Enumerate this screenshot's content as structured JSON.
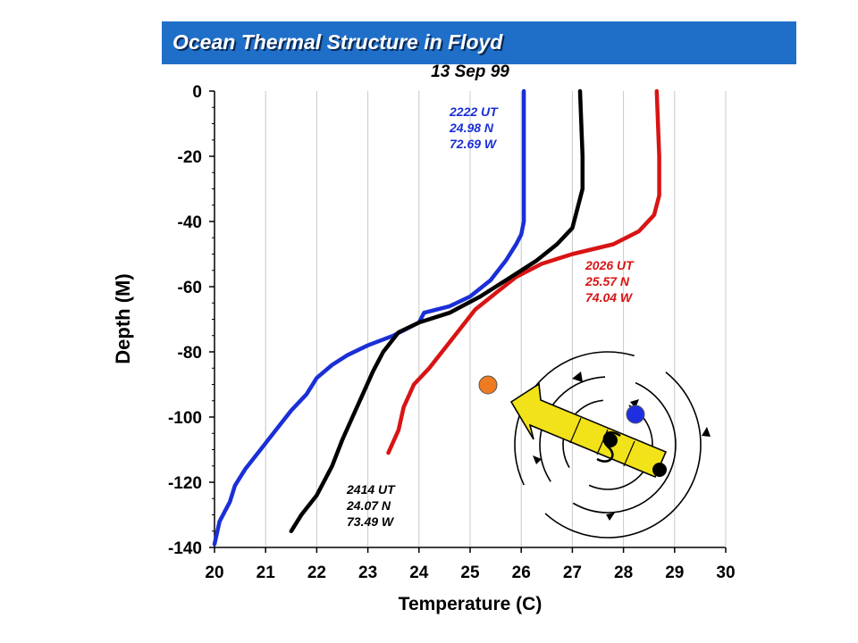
{
  "header": {
    "title": "Ocean Thermal Structure in Floyd"
  },
  "chart_data": {
    "type": "line",
    "subtitle": "13 Sep 99",
    "xlabel": "Temperature (C)",
    "ylabel": "Depth (M)",
    "xlim": [
      20,
      30
    ],
    "ylim": [
      -140,
      0
    ],
    "xticks": [
      "20",
      "21",
      "22",
      "23",
      "24",
      "25",
      "26",
      "27",
      "28",
      "29",
      "30"
    ],
    "yticks": [
      "0",
      "-20",
      "-40",
      "-60",
      "-80",
      "-100",
      "-120",
      "-140"
    ],
    "grid": true,
    "series": [
      {
        "name": "2222 UT",
        "color": "#1a2fd6",
        "annotation": [
          "2222 UT",
          "24.98 N",
          "72.69 W"
        ],
        "points": [
          [
            26.05,
            0
          ],
          [
            26.05,
            -20
          ],
          [
            26.05,
            -40
          ],
          [
            26.0,
            -44
          ],
          [
            25.9,
            -47
          ],
          [
            25.7,
            -52
          ],
          [
            25.4,
            -58
          ],
          [
            25.0,
            -63
          ],
          [
            24.6,
            -66
          ],
          [
            24.1,
            -68
          ],
          [
            24.0,
            -71
          ],
          [
            23.5,
            -75
          ],
          [
            23.0,
            -78
          ],
          [
            22.6,
            -81
          ],
          [
            22.3,
            -84
          ],
          [
            22.0,
            -88
          ],
          [
            21.8,
            -93
          ],
          [
            21.5,
            -98
          ],
          [
            21.2,
            -104
          ],
          [
            20.9,
            -110
          ],
          [
            20.6,
            -116
          ],
          [
            20.4,
            -121
          ],
          [
            20.3,
            -126
          ],
          [
            20.1,
            -132
          ],
          [
            20.0,
            -139
          ]
        ]
      },
      {
        "name": "2026 UT",
        "color": "#d81414",
        "annotation": [
          "2026 UT",
          "25.57 N",
          "74.04 W"
        ],
        "points": [
          [
            28.65,
            0
          ],
          [
            28.7,
            -20
          ],
          [
            28.7,
            -32
          ],
          [
            28.6,
            -38
          ],
          [
            28.3,
            -43
          ],
          [
            27.8,
            -47
          ],
          [
            27.0,
            -50
          ],
          [
            26.4,
            -53
          ],
          [
            25.9,
            -57
          ],
          [
            25.5,
            -62
          ],
          [
            25.1,
            -67
          ],
          [
            24.8,
            -73
          ],
          [
            24.5,
            -79
          ],
          [
            24.2,
            -85
          ],
          [
            23.9,
            -90
          ],
          [
            23.7,
            -97
          ],
          [
            23.6,
            -104
          ],
          [
            23.4,
            -111
          ]
        ]
      },
      {
        "name": "2414 UT",
        "color": "#000000",
        "annotation": [
          "2414 UT",
          "24.07 N",
          "73.49 W"
        ],
        "points": [
          [
            27.15,
            0
          ],
          [
            27.2,
            -20
          ],
          [
            27.2,
            -30
          ],
          [
            27.1,
            -36
          ],
          [
            27.0,
            -42
          ],
          [
            26.7,
            -47
          ],
          [
            26.3,
            -52
          ],
          [
            25.8,
            -57
          ],
          [
            25.2,
            -63
          ],
          [
            24.6,
            -68
          ],
          [
            24.0,
            -71
          ],
          [
            23.6,
            -74
          ],
          [
            23.3,
            -80
          ],
          [
            23.1,
            -86
          ],
          [
            22.9,
            -93
          ],
          [
            22.7,
            -100
          ],
          [
            22.5,
            -107
          ],
          [
            22.3,
            -115
          ],
          [
            22.0,
            -124
          ],
          [
            21.7,
            -130
          ],
          [
            21.5,
            -135
          ]
        ]
      }
    ]
  },
  "inset_icon": "storm-track-schematic-icon"
}
